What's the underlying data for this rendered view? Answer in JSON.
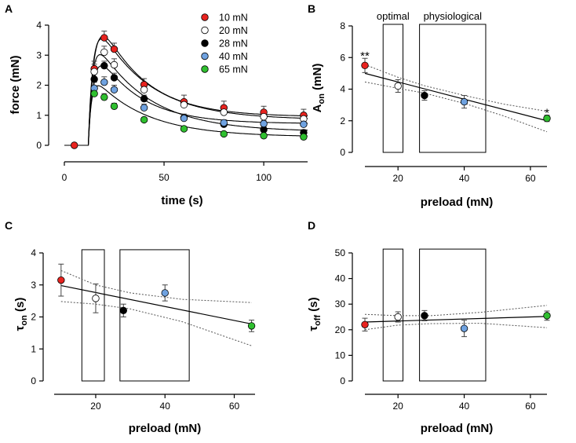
{
  "figure": {
    "colors": {
      "c10": "#e8231f",
      "c20": "#ffffff",
      "c28": "#000000",
      "c40": "#6fa2e0",
      "c65": "#2fbf2f",
      "axis": "#000000",
      "ci": "#555555"
    }
  },
  "chart_data": [
    {
      "panel": "A",
      "type": "line",
      "xlabel": "time (s)",
      "ylabel": "force (mN)",
      "xlim": [
        -2,
        122
      ],
      "ylim": [
        -0.2,
        4
      ],
      "xticks": [
        "0",
        "50",
        "100"
      ],
      "yticks": [
        "0",
        "1",
        "2",
        "3",
        "4"
      ],
      "x": [
        5,
        15,
        20,
        25,
        40,
        60,
        80,
        100,
        120
      ],
      "series": [
        {
          "name": "10 mN",
          "color_key": "c10",
          "values": [
            0,
            2.55,
            3.58,
            3.2,
            2.02,
            1.45,
            1.25,
            1.1,
            1.0
          ],
          "err": [
            0.1,
            0.25,
            0.22,
            0.2,
            0.2,
            0.22,
            0.22,
            0.2,
            0.2
          ]
        },
        {
          "name": "20 mN",
          "color_key": "c20",
          "values": [
            0,
            2.45,
            3.1,
            2.68,
            1.85,
            1.35,
            1.1,
            0.95,
            0.88
          ],
          "err": [
            0.1,
            0.25,
            0.2,
            0.2,
            0.18,
            0.15,
            0.15,
            0.12,
            0.12
          ]
        },
        {
          "name": "28 mN",
          "color_key": "c28",
          "values": [
            0,
            2.2,
            2.65,
            2.25,
            1.55,
            0.92,
            0.7,
            0.52,
            0.42
          ],
          "err": [
            0.1,
            0.2,
            0.15,
            0.15,
            0.12,
            0.12,
            0.1,
            0.1,
            0.1
          ]
        },
        {
          "name": "40 mN",
          "color_key": "c40",
          "values": [
            0,
            1.9,
            2.1,
            1.85,
            1.25,
            0.9,
            0.75,
            0.72,
            0.7
          ],
          "err": [
            0.1,
            0.2,
            0.18,
            0.15,
            0.12,
            0.1,
            0.1,
            0.1,
            0.1
          ]
        },
        {
          "name": "65 mN",
          "color_key": "c65",
          "values": [
            0,
            1.72,
            1.6,
            1.3,
            0.85,
            0.55,
            0.38,
            0.32,
            0.28
          ],
          "err": [
            0.1,
            0.15,
            0.12,
            0.1,
            0.08,
            0.06,
            0.05,
            0.05,
            0.05
          ]
        }
      ],
      "fits": [
        {
          "name": "10 mN",
          "A": 4.3,
          "tau_on": 3.2,
          "tau_off": 22,
          "plateau": 0.95
        },
        {
          "name": "20 mN",
          "A": 3.9,
          "tau_on": 2.6,
          "tau_off": 25,
          "plateau": 0.85
        },
        {
          "name": "28 mN",
          "A": 3.5,
          "tau_on": 2.2,
          "tau_off": 26,
          "plateau": 0.45
        },
        {
          "name": "40 mN",
          "A": 3.0,
          "tau_on": 2.75,
          "tau_off": 21,
          "plateau": 0.72
        },
        {
          "name": "65 mN",
          "A": 2.2,
          "tau_on": 1.7,
          "tau_off": 26,
          "plateau": 0.28
        }
      ],
      "stim_onset": 12,
      "legend": [
        "10 mN",
        "20 mN",
        "28 mN",
        "40 mN",
        "65 mN"
      ],
      "legend_position": "top-right"
    },
    {
      "panel": "B",
      "type": "scatter",
      "xlabel": "preload (mN)",
      "ylabel_main": "A",
      "ylabel_sub": "on",
      "ylabel_unit": " (mN)",
      "xlim": [
        10,
        65
      ],
      "ylim": [
        0,
        8
      ],
      "xticks": [
        "20",
        "40",
        "60"
      ],
      "yticks": [
        "0",
        "2",
        "4",
        "6",
        "8"
      ],
      "points": [
        {
          "x": 10,
          "y": 5.5,
          "err": 0.45,
          "color_key": "c10"
        },
        {
          "x": 20,
          "y": 4.2,
          "err": 0.4,
          "color_key": "c20"
        },
        {
          "x": 28,
          "y": 3.6,
          "err": 0.3,
          "color_key": "c28"
        },
        {
          "x": 40,
          "y": 3.2,
          "err": 0.4,
          "color_key": "c40"
        },
        {
          "x": 65,
          "y": 2.15,
          "err": 0.2,
          "color_key": "c65"
        }
      ],
      "fit": {
        "x0": 10,
        "y0": 5.0,
        "x1": 65,
        "y1": 2.0
      },
      "ci_upper": [
        [
          10,
          5.55
        ],
        [
          20,
          4.75
        ],
        [
          28,
          4.22
        ],
        [
          40,
          3.6
        ],
        [
          52,
          3.05
        ],
        [
          65,
          2.6
        ]
      ],
      "ci_lower": [
        [
          10,
          4.45
        ],
        [
          20,
          4.05
        ],
        [
          28,
          3.75
        ],
        [
          40,
          3.1
        ],
        [
          52,
          2.3
        ],
        [
          65,
          1.3
        ]
      ],
      "boxes": [
        {
          "label": "optimal",
          "x0": 15.5,
          "x1": 21.5
        },
        {
          "label": "physiological",
          "x0": 26.5,
          "x1": 46.5
        }
      ],
      "box_ymax": 8.1,
      "annotations": [
        {
          "text": "**",
          "x": 10,
          "y": 6.15
        },
        {
          "text": "*",
          "x": 65,
          "y": 2.55
        }
      ]
    },
    {
      "panel": "C",
      "type": "scatter",
      "xlabel": "preload (mN)",
      "ylabel_main": "τ",
      "ylabel_sub": "on",
      "ylabel_unit": " (s)",
      "xlim": [
        8,
        66
      ],
      "ylim": [
        0,
        4
      ],
      "xticks": [
        "20",
        "40",
        "60"
      ],
      "yticks": [
        "0",
        "1",
        "2",
        "3",
        "4"
      ],
      "points": [
        {
          "x": 10,
          "y": 3.15,
          "err": 0.5,
          "color_key": "c10"
        },
        {
          "x": 20,
          "y": 2.58,
          "err": 0.45,
          "color_key": "c20"
        },
        {
          "x": 28,
          "y": 2.2,
          "err": 0.2,
          "color_key": "c28"
        },
        {
          "x": 40,
          "y": 2.75,
          "err": 0.25,
          "color_key": "c40"
        },
        {
          "x": 65,
          "y": 1.72,
          "err": 0.18,
          "color_key": "c65"
        }
      ],
      "fit": {
        "x0": 10,
        "y0": 2.98,
        "x1": 65,
        "y1": 1.78
      },
      "ci_upper": [
        [
          10,
          3.45
        ],
        [
          20,
          3.0
        ],
        [
          30,
          2.75
        ],
        [
          45,
          2.55
        ],
        [
          65,
          2.45
        ]
      ],
      "ci_lower": [
        [
          10,
          2.48
        ],
        [
          20,
          2.4
        ],
        [
          30,
          2.25
        ],
        [
          45,
          1.85
        ],
        [
          65,
          1.1
        ]
      ],
      "boxes": [
        {
          "label": "",
          "x0": 16,
          "x1": 22.5
        },
        {
          "label": "",
          "x0": 27,
          "x1": 47
        }
      ],
      "box_ymax": 4.1,
      "annotations": []
    },
    {
      "panel": "D",
      "type": "scatter",
      "xlabel": "preload (mN)",
      "ylabel_main": "τ",
      "ylabel_sub": "off",
      "ylabel_unit": " (s)",
      "xlim": [
        10,
        65
      ],
      "ylim": [
        0,
        50
      ],
      "xticks": [
        "20",
        "40",
        "60"
      ],
      "yticks": [
        "0",
        "10",
        "20",
        "30",
        "40",
        "50"
      ],
      "points": [
        {
          "x": 10,
          "y": 22,
          "err": 2.5,
          "color_key": "c10"
        },
        {
          "x": 20,
          "y": 25,
          "err": 2.0,
          "color_key": "c20"
        },
        {
          "x": 28,
          "y": 25.5,
          "err": 2.0,
          "color_key": "c28"
        },
        {
          "x": 40,
          "y": 20.5,
          "err": 3.2,
          "color_key": "c40"
        },
        {
          "x": 65,
          "y": 25.5,
          "err": 1.8,
          "color_key": "c65"
        }
      ],
      "fit": {
        "x0": 10,
        "y0": 23.0,
        "x1": 65,
        "y1": 25.2
      },
      "ci_upper": [
        [
          10,
          26
        ],
        [
          20,
          25.5
        ],
        [
          30,
          25.5
        ],
        [
          45,
          26.8
        ],
        [
          65,
          29.5
        ]
      ],
      "ci_lower": [
        [
          10,
          20
        ],
        [
          20,
          21.8
        ],
        [
          30,
          22.4
        ],
        [
          45,
          22.5
        ],
        [
          65,
          20.8
        ]
      ],
      "boxes": [
        {
          "label": "",
          "x0": 15.5,
          "x1": 21.5
        },
        {
          "label": "",
          "x0": 26.5,
          "x1": 46.5
        }
      ],
      "box_ymax": 51.5,
      "annotations": []
    }
  ]
}
